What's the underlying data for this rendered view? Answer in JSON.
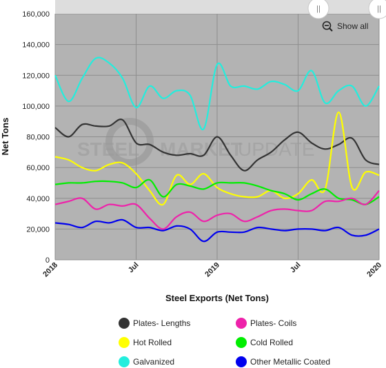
{
  "chart_data": {
    "type": "line",
    "title": "",
    "xlabel": "Steel Exports (Net Tons)",
    "ylabel": "Net Tons",
    "ylim": [
      0,
      160000
    ],
    "yticks": [
      0,
      20000,
      40000,
      60000,
      80000,
      100000,
      120000,
      140000,
      160000
    ],
    "ytick_labels": [
      "0",
      "20,000",
      "40,000",
      "60,000",
      "80,000",
      "100,000",
      "120,000",
      "140,000",
      "160,000"
    ],
    "xticks": [
      {
        "month": 0,
        "label": "2018"
      },
      {
        "month": 6,
        "label": "Jul"
      },
      {
        "month": 12,
        "label": "2019"
      },
      {
        "month": 18,
        "label": "Jul"
      },
      {
        "month": 24,
        "label": "2020"
      }
    ],
    "grid": true,
    "legend_position": "bottom",
    "months": [
      "Jan 2018",
      "Feb 2018",
      "Mar 2018",
      "Apr 2018",
      "May 2018",
      "Jun 2018",
      "Jul 2018",
      "Aug 2018",
      "Sep 2018",
      "Oct 2018",
      "Nov 2018",
      "Dec 2018",
      "Jan 2019",
      "Feb 2019",
      "Mar 2019",
      "Apr 2019",
      "May 2019",
      "Jun 2019",
      "Jul 2019",
      "Aug 2019",
      "Sep 2019",
      "Oct 2019",
      "Nov 2019",
      "Dec 2019",
      "Jan 2020"
    ],
    "series": [
      {
        "name": "Plates- Lengths",
        "color": "#333333",
        "values": [
          86000,
          80000,
          88000,
          87000,
          87000,
          91000,
          76000,
          75000,
          70000,
          68000,
          69000,
          68000,
          80000,
          68000,
          58000,
          65000,
          70000,
          78000,
          83000,
          76000,
          72000,
          75000,
          79000,
          65000,
          62000
        ]
      },
      {
        "name": "Plates- Coils",
        "color": "#ee22aa",
        "values": [
          36000,
          38000,
          40000,
          33000,
          36000,
          35000,
          36000,
          27000,
          20000,
          28000,
          31000,
          25000,
          29000,
          30000,
          25000,
          28000,
          32000,
          33000,
          32000,
          32000,
          38000,
          38000,
          40000,
          36000,
          45000
        ]
      },
      {
        "name": "Hot Rolled",
        "color": "#ffff00",
        "values": [
          67000,
          65000,
          60000,
          58000,
          62000,
          63000,
          56000,
          45000,
          36000,
          55000,
          49000,
          56000,
          47000,
          43000,
          41000,
          41000,
          45000,
          40000,
          43000,
          52000,
          46000,
          96000,
          47000,
          57000,
          55000
        ]
      },
      {
        "name": "Cold Rolled",
        "color": "#00ee00",
        "values": [
          49000,
          50000,
          50000,
          51000,
          51000,
          50000,
          47000,
          52000,
          41000,
          49000,
          48000,
          46000,
          50000,
          50000,
          50000,
          48000,
          45000,
          43000,
          39000,
          43000,
          46000,
          40000,
          39000,
          36000,
          41000
        ]
      },
      {
        "name": "Galvanized",
        "color": "#22eedd",
        "values": [
          120000,
          103000,
          118000,
          131000,
          128000,
          118000,
          99000,
          113000,
          105000,
          110000,
          107000,
          85000,
          127000,
          113000,
          113000,
          111000,
          116000,
          114000,
          110000,
          123000,
          102000,
          110000,
          113000,
          100000,
          113000
        ]
      },
      {
        "name": "Other Metallic Coated",
        "color": "#0000ee",
        "values": [
          24000,
          23000,
          21000,
          25000,
          24000,
          26000,
          21000,
          21000,
          19000,
          22000,
          20000,
          12000,
          18000,
          18000,
          18000,
          21000,
          20000,
          19000,
          20000,
          20000,
          19000,
          21000,
          16000,
          16000,
          20000
        ]
      }
    ],
    "legend": {
      "columns": [
        [
          "Plates- Lengths",
          "Hot Rolled",
          "Galvanized"
        ],
        [
          "Plates- Coils",
          "Cold Rolled",
          "Other Metallic Coated"
        ]
      ]
    }
  },
  "navigator": {
    "handle_glyph": "||"
  },
  "toolbar": {
    "show_all_label": "Show all",
    "show_all_icon": "zoom-out-icon"
  },
  "watermark": {
    "text_bold": "STEEL",
    "text_mid": "MARKET",
    "text_light": "UPDATE",
    "logo": "circular-s-logo"
  },
  "colors": {
    "plot_background": "#b3b3b3",
    "grid": "#8e8e8e"
  }
}
